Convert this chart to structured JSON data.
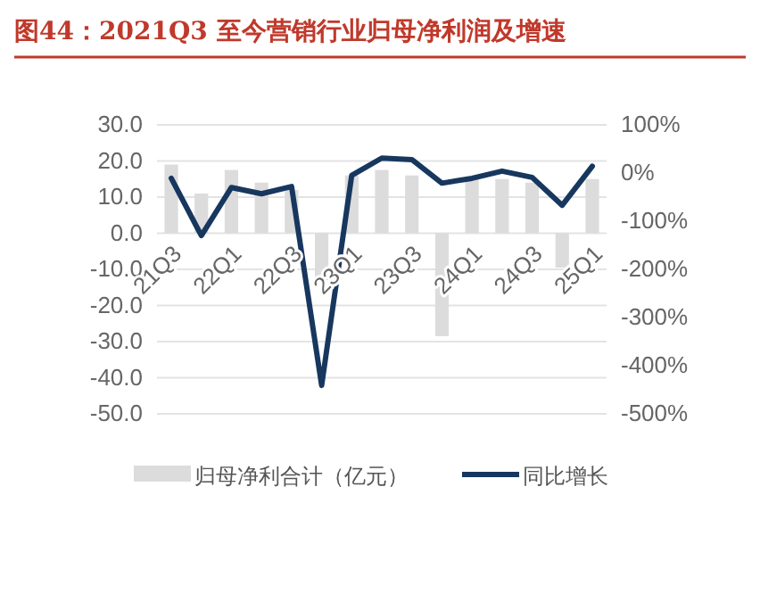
{
  "chart_data": {
    "type": "bar",
    "title": "图44：2021Q3 至今营销行业归母净利润及增速",
    "categories": [
      "21Q3",
      null,
      "22Q1",
      null,
      "22Q3",
      null,
      "23Q1",
      null,
      "23Q3",
      null,
      "24Q1",
      null,
      "24Q3",
      null,
      "25Q1"
    ],
    "series": [
      {
        "name": "归母净利合计（亿元）",
        "color": "#dcdcdc",
        "values": [
          19,
          11,
          17.5,
          14,
          12,
          -13,
          16,
          17.5,
          16,
          -28.5,
          15,
          15,
          14,
          -9.5,
          15
        ]
      },
      {
        "name": "同比增长",
        "type": "line",
        "axis": "y2",
        "color": "#17375e",
        "values": [
          -11,
          -130,
          -30,
          -43,
          -28,
          -441,
          -5,
          31,
          28,
          -21,
          -11,
          4,
          -9,
          -67,
          14
        ]
      }
    ],
    "ylim": [
      -50,
      30
    ],
    "yticks": [
      {
        "value": -50,
        "label": "-50.0"
      },
      {
        "value": -40,
        "label": "-40.0"
      },
      {
        "value": -30,
        "label": "-30.0"
      },
      {
        "value": -20,
        "label": "-20.0"
      },
      {
        "value": -10,
        "label": "-10.0"
      },
      {
        "value": 0,
        "label": "0.0"
      },
      {
        "value": 10,
        "label": "10.0"
      },
      {
        "value": 20,
        "label": "20.0"
      },
      {
        "value": 30,
        "label": "30.0"
      }
    ],
    "y2lim": [
      -500,
      100
    ],
    "y2ticks": [
      {
        "value": -500,
        "label": "-500%"
      },
      {
        "value": -400,
        "label": "-400%"
      },
      {
        "value": -300,
        "label": "-300%"
      },
      {
        "value": -200,
        "label": "-200%"
      },
      {
        "value": -100,
        "label": "-100%"
      },
      {
        "value": 0,
        "label": "0%"
      },
      {
        "value": 100,
        "label": "100%"
      }
    ],
    "grid": "y",
    "legend": "bottom"
  }
}
